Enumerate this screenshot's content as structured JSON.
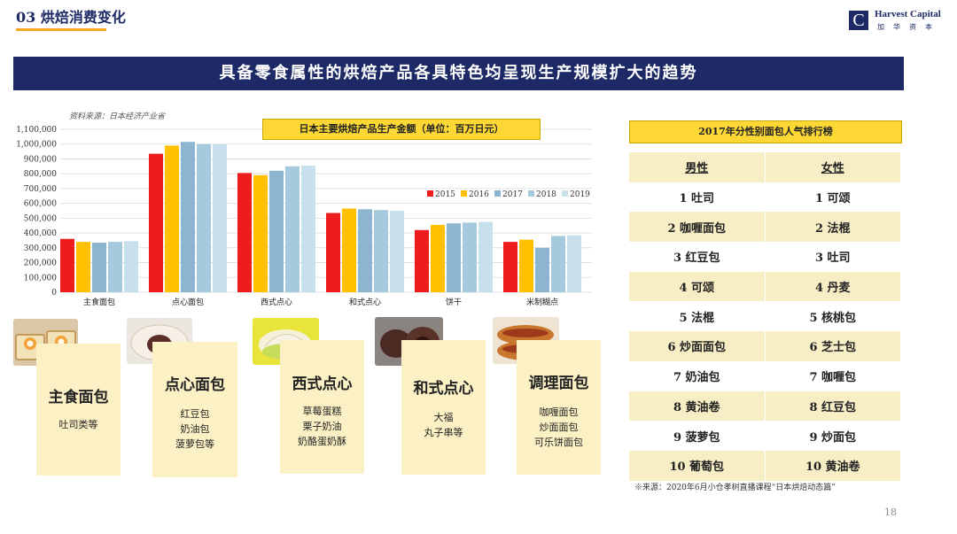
{
  "header": {
    "section_title": "03 烘焙消费变化",
    "logo_name": "Harvest Capital",
    "logo_sub": "加华资本"
  },
  "banner": "具备零食属性的烘焙产品各具特色均呈现生产规模扩大的趋势",
  "chart_data": {
    "type": "bar",
    "title": "日本主要烘焙产品生产金额（单位：百万日元）",
    "source": "资料来源：日本经济产业省",
    "categories": [
      "主食面包",
      "点心面包",
      "西式点心",
      "和式点心",
      "饼干",
      "米制糊点"
    ],
    "series": [
      {
        "name": "2015",
        "color": "#ee1c1c",
        "values": [
          360000,
          935000,
          805000,
          535000,
          420000,
          340000
        ]
      },
      {
        "name": "2016",
        "color": "#ffc000",
        "values": [
          340000,
          990000,
          790000,
          565000,
          455000,
          355000
        ]
      },
      {
        "name": "2017",
        "color": "#8eb5cf",
        "values": [
          335000,
          1015000,
          820000,
          560000,
          465000,
          300000
        ]
      },
      {
        "name": "2018",
        "color": "#a6cadd",
        "values": [
          340000,
          1000000,
          850000,
          555000,
          470000,
          380000
        ]
      },
      {
        "name": "2019",
        "color": "#c8e0ec",
        "values": [
          345000,
          1000000,
          855000,
          550000,
          475000,
          385000
        ]
      }
    ],
    "ylim": [
      0,
      1100000
    ],
    "yticks": [
      "0",
      "100,000",
      "200,000",
      "300,000",
      "400,000",
      "500,000",
      "600,000",
      "700,000",
      "800,000",
      "900,000",
      "1,000,000",
      "1,100,000"
    ],
    "legend_position": "right",
    "grid": true
  },
  "categories_cards": [
    {
      "name": "主食面包",
      "desc": "吐司类等"
    },
    {
      "name": "点心面包",
      "desc": "红豆包\n奶油包\n菠萝包等"
    },
    {
      "name": "西式点心",
      "desc": "草莓蛋糕\n栗子奶油\n奶酪蛋奶酥"
    },
    {
      "name": "和式点心",
      "desc": "大福\n丸子串等"
    },
    {
      "name": "调理面包",
      "desc": "咖喱面包\n炒面面包\n可乐饼面包"
    }
  ],
  "ranking": {
    "title": "2017年分性别面包人气排行榜",
    "headers": [
      "男性",
      "女性"
    ],
    "rows": [
      [
        "1 吐司",
        "1 可颂"
      ],
      [
        "2 咖喱面包",
        "2 法棍"
      ],
      [
        "3 红豆包",
        "3 吐司"
      ],
      [
        "4 可颂",
        "4 丹麦"
      ],
      [
        "5 法棍",
        "5 核桃包"
      ],
      [
        "6 炒面面包",
        "6 芝士包"
      ],
      [
        "7 奶油包",
        "7 咖喱包"
      ],
      [
        "8 黄油卷",
        "8 红豆包"
      ],
      [
        "9 菠萝包",
        "9 炒面包"
      ],
      [
        "10 葡萄包",
        "10 黄油卷"
      ]
    ],
    "source": "※来源：2020年6月小仓孝树直播课程“日本烘焙动态篇”"
  },
  "page_number": "18"
}
